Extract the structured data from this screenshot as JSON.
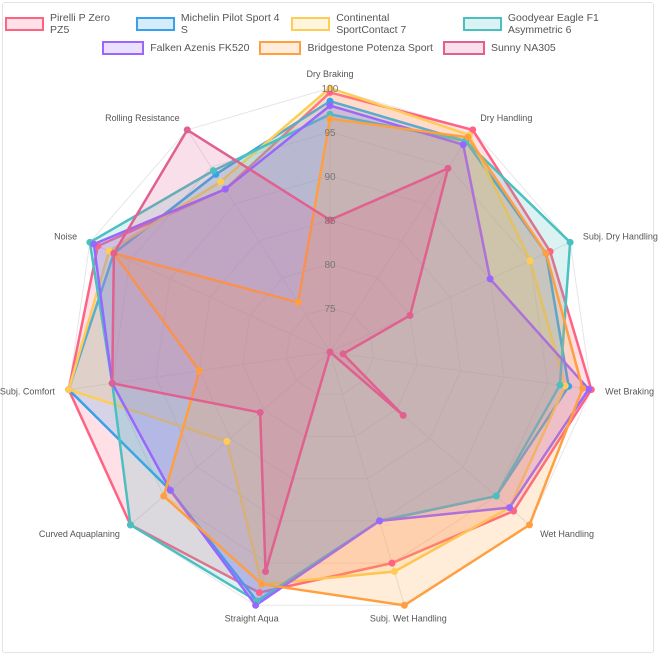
{
  "chart_data": {
    "type": "radar",
    "title": "",
    "legend_position": "top",
    "grid": true,
    "range": [
      70,
      100
    ],
    "ticks": [
      75,
      80,
      85,
      90,
      95,
      100
    ],
    "categories": [
      "Dry Braking",
      "Dry Handling",
      "Subj. Dry Handling",
      "Wet Braking",
      "Wet Handling",
      "Subj. Wet Handling",
      "Straight Aqua",
      "Curved Aquaplaning",
      "Subj. Comfort",
      "Noise",
      "Rolling Resistance"
    ],
    "series": [
      {
        "name": "Pirelli P Zero PZ5",
        "color": "#ff6384",
        "values": [
          99.5,
          100,
          97.5,
          100,
          97.6,
          95,
          98.5,
          100,
          100,
          99,
          92
        ]
      },
      {
        "name": "Michelin Pilot Sport 4 S",
        "color": "#36a2eb",
        "values": [
          98.5,
          98.5,
          97,
          97.4,
          95,
          90,
          99.5,
          94,
          100,
          97,
          94
        ]
      },
      {
        "name": "Continental SportContact 7",
        "color": "#ffcd56",
        "values": [
          100,
          99.3,
          95,
          97,
          97,
          96,
          97.5,
          85.5,
          100,
          97.6,
          93
        ]
      },
      {
        "name": "Goodyear Eagle F1 Asymmetric 6",
        "color": "#4bc0c0",
        "values": [
          97,
          98.5,
          100,
          96.4,
          95,
          90,
          99.5,
          100,
          95,
          100,
          94.5
        ]
      },
      {
        "name": "Falken Azenis FK520",
        "color": "#9966ff",
        "values": [
          98,
          98,
          90,
          99.7,
          97,
          90,
          100,
          94,
          95,
          99.5,
          92
        ]
      },
      {
        "name": "Bridgestone Potenza Sport",
        "color": "#ff9f40",
        "values": [
          96.5,
          99,
          97,
          99,
          100,
          100,
          97.5,
          95,
          85,
          97,
          76.7
        ]
      },
      {
        "name": "Sunny NA305",
        "color": "#e0608f",
        "values": [
          85,
          94.8,
          80,
          71.5,
          81,
          70,
          96,
          80.5,
          95,
          97,
          100
        ]
      }
    ]
  }
}
